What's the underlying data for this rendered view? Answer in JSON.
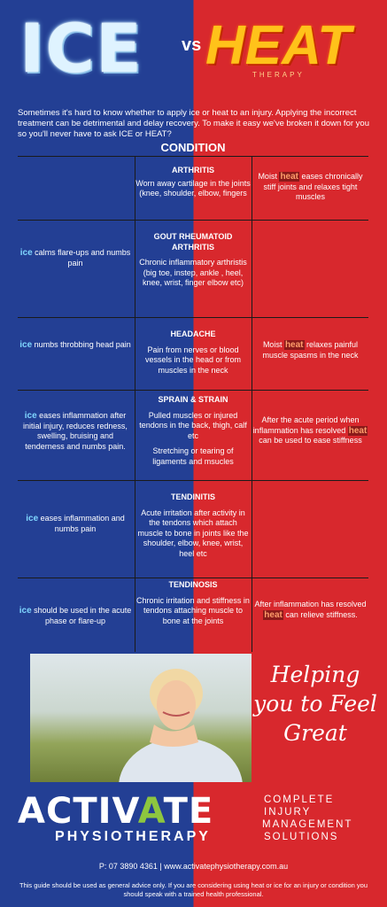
{
  "header": {
    "ice": "ICE",
    "vs": "vs",
    "heat": "HEAT",
    "heat_sub": "THERAPY"
  },
  "intro": "Sometimes it's hard to know whether to apply ice or heat to an injury. Applying the incorrect treatment can be detrimental and delay recovery. To make it easy we've broken it down for you so you'll never have to ask ICE or HEAT?",
  "condition_header": "CONDITION",
  "keywords": {
    "ice": "ice",
    "heat": "heat"
  },
  "rows": [
    {
      "title": "ARTHRITIS",
      "desc": "Worn away cartilage in the joints (knee, shoulder, elbow, fingers",
      "ice": "",
      "heat_pre": "Moist ",
      "heat_post": " eases chronically stiff joints and relaxes tight muscles"
    },
    {
      "title": "GOUT RHEUMATOID ARTHRITIS",
      "desc": "Chronic inflammatory arthristis (big toe, instep, ankle , heel, knee, wrist, finger elbow etc)",
      "ice_post": " calms flare-ups and numbs pain"
    },
    {
      "title": "HEADACHE",
      "desc": "Pain from nerves or blood vessels in the head or from muscles in the neck",
      "ice_post": " numbs throbbing head pain",
      "heat_pre": "Moist ",
      "heat_post": " relaxes painful muscle spasms in the neck"
    },
    {
      "title": "SPRAIN & STRAIN",
      "desc": "Pulled muscles or injured tendons in the back, thigh, calf etc",
      "desc2": "Stretching or tearing of ligaments and msucles",
      "ice_post": " eases inflammation after initial injury, reduces redness, swelling, bruising and tenderness and numbs pain.",
      "heat_pre": "After the acute period when inflammation has resolved ",
      "heat_post": " can be used to ease stiffness"
    },
    {
      "title": "TENDINITIS",
      "desc": "Acute irritation after activity in the tendons which attach muscle to bone in joints like the shoulder, elbow, knee, wrist, heel etc",
      "ice_post": " eases inflammation and numbs pain"
    },
    {
      "title": "TENDINOSIS",
      "desc": "Chronic irritation and stiffness in tendons attaching muscle to bone at the joints",
      "ice_post": " should be used in the acute phase or flare-up",
      "heat_pre": "After inflammation has resolved ",
      "heat_post": " can relieve stiffness."
    }
  ],
  "tagline": "Helping you to Feel Great",
  "brand": {
    "main_a": "ACTIV",
    "main_b": "A",
    "main_c": "TE",
    "sub": "PHYSIOTHERAPY"
  },
  "slogan": [
    "COMPLETE",
    "INJURY",
    "MANAGEMENT",
    "SOLUTIONS"
  ],
  "contact": "P: 07 3890 4361 | www.activatephysiotherapy.com.au",
  "disclaimer": "This guide should be used as general advice only. If you are considering using heat or ice for an injury or condition you should speak with a trained health professional.",
  "colors": {
    "ice_blue": "#233f94",
    "heat_red": "#d8282d",
    "brand_green": "#8dc63f"
  }
}
